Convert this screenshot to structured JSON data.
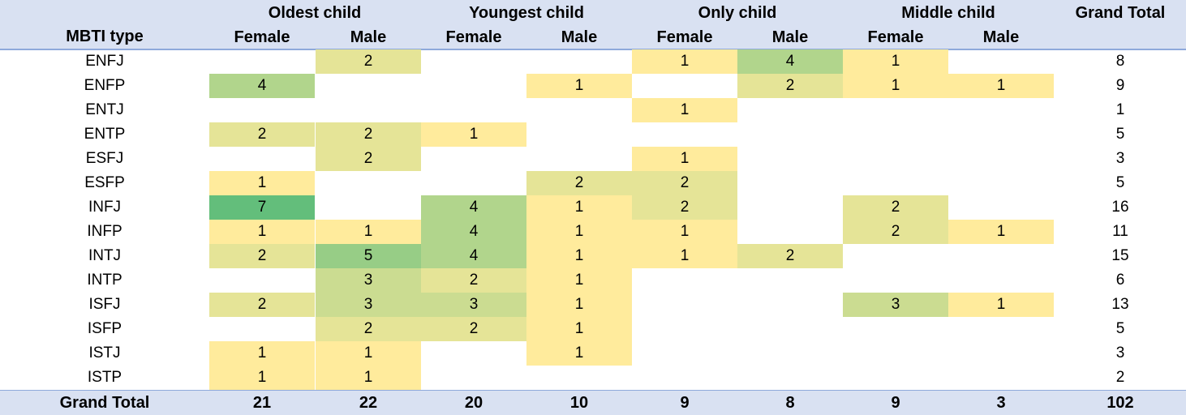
{
  "chart_data": {
    "type": "table",
    "row_header": "MBTI type",
    "total_label": "Grand Total",
    "groups": [
      "Oldest child",
      "Youngest child",
      "Only child",
      "Middle child"
    ],
    "subgroups": [
      "Female",
      "Male"
    ],
    "rows": [
      {
        "label": "ENFJ",
        "values": [
          null,
          2,
          null,
          null,
          1,
          4,
          1,
          null
        ],
        "total": 8
      },
      {
        "label": "ENFP",
        "values": [
          4,
          null,
          null,
          1,
          null,
          2,
          1,
          1
        ],
        "total": 9
      },
      {
        "label": "ENTJ",
        "values": [
          null,
          null,
          null,
          null,
          1,
          null,
          null,
          null
        ],
        "total": 1
      },
      {
        "label": "ENTP",
        "values": [
          2,
          2,
          1,
          null,
          null,
          null,
          null,
          null
        ],
        "total": 5
      },
      {
        "label": "ESFJ",
        "values": [
          null,
          2,
          null,
          null,
          1,
          null,
          null,
          null
        ],
        "total": 3
      },
      {
        "label": "ESFP",
        "values": [
          1,
          null,
          null,
          2,
          2,
          null,
          null,
          null
        ],
        "total": 5
      },
      {
        "label": "INFJ",
        "values": [
          7,
          null,
          4,
          1,
          2,
          null,
          2,
          null
        ],
        "total": 16
      },
      {
        "label": "INFP",
        "values": [
          1,
          1,
          4,
          1,
          1,
          null,
          2,
          1
        ],
        "total": 11
      },
      {
        "label": "INTJ",
        "values": [
          2,
          5,
          4,
          1,
          1,
          2,
          null,
          null
        ],
        "total": 15
      },
      {
        "label": "INTP",
        "values": [
          null,
          3,
          2,
          1,
          null,
          null,
          null,
          null
        ],
        "total": 6
      },
      {
        "label": "ISFJ",
        "values": [
          2,
          3,
          3,
          1,
          null,
          null,
          3,
          1
        ],
        "total": 13
      },
      {
        "label": "ISFP",
        "values": [
          null,
          2,
          2,
          1,
          null,
          null,
          null,
          null
        ],
        "total": 5
      },
      {
        "label": "ISTJ",
        "values": [
          1,
          1,
          null,
          1,
          null,
          null,
          null,
          null
        ],
        "total": 3
      },
      {
        "label": "ISTP",
        "values": [
          1,
          1,
          null,
          null,
          null,
          null,
          null,
          null
        ],
        "total": 2
      }
    ],
    "column_totals": [
      21,
      22,
      20,
      10,
      9,
      8,
      9,
      3
    ],
    "grand_total": 102,
    "color_scale": {
      "low": "#ffeb9c",
      "high": "#63be7b"
    }
  }
}
